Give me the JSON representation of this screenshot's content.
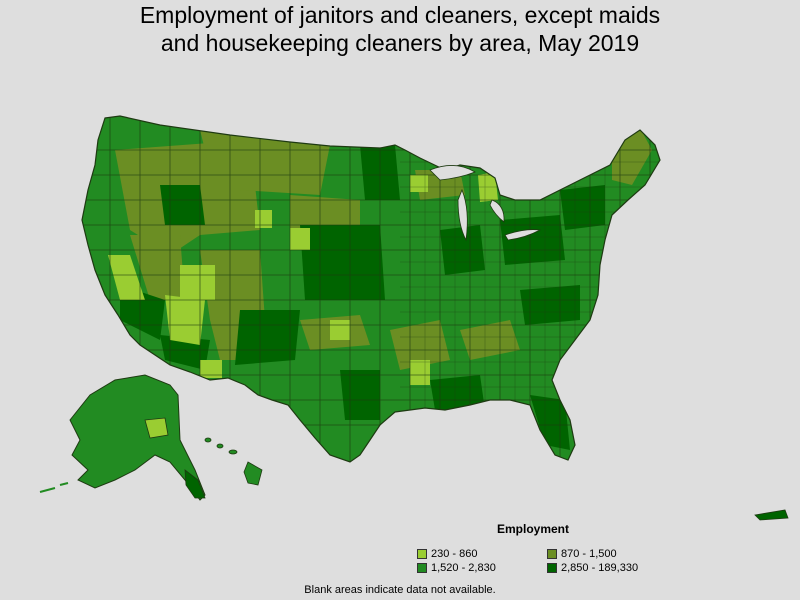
{
  "title_line1": "Employment of janitors and cleaners, except maids",
  "title_line2": "and housekeeping cleaners by area, May 2019",
  "legend": {
    "title": "Employment",
    "items": [
      {
        "label": "230 - 860",
        "color": "#9acd32"
      },
      {
        "label": "870 - 1,500",
        "color": "#6b8e23"
      },
      {
        "label": "1,520 - 2,830",
        "color": "#228b22"
      },
      {
        "label": "2,850 - 189,330",
        "color": "#006400"
      }
    ]
  },
  "footnote": "Blank areas indicate data not available.",
  "colors": {
    "background": "#dedede",
    "border": "#1e3a12"
  }
}
